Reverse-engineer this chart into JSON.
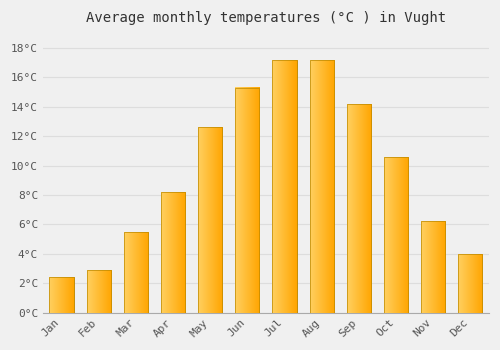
{
  "title": "Average monthly temperatures (°C ) in Vught",
  "months": [
    "Jan",
    "Feb",
    "Mar",
    "Apr",
    "May",
    "Jun",
    "Jul",
    "Aug",
    "Sep",
    "Oct",
    "Nov",
    "Dec"
  ],
  "temperatures": [
    2.4,
    2.9,
    5.5,
    8.2,
    12.6,
    15.3,
    17.2,
    17.2,
    14.2,
    10.6,
    6.2,
    4.0
  ],
  "bar_color_left": "#FFD060",
  "bar_color_right": "#FFA500",
  "ylim": [
    0,
    19
  ],
  "yticks": [
    0,
    2,
    4,
    6,
    8,
    10,
    12,
    14,
    16,
    18
  ],
  "background_color": "#F0F0F0",
  "grid_color": "#DDDDDD",
  "title_fontsize": 10,
  "tick_fontsize": 8,
  "font_family": "monospace",
  "bar_width": 0.65,
  "fig_width": 5.0,
  "fig_height": 3.5,
  "dpi": 100
}
